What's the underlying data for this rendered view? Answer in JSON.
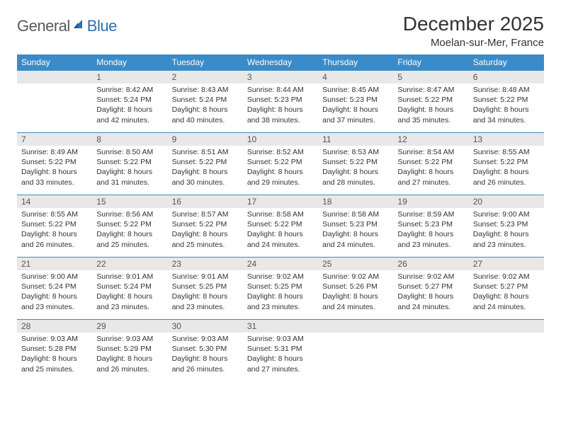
{
  "logo": {
    "part1": "General",
    "part2": "Blue"
  },
  "title": "December 2025",
  "location": "Moelan-sur-Mer, France",
  "header_bg": "#3b8bc8",
  "border_color": "#3b8bc8",
  "daynum_bg": "#e8e8e8",
  "weekdays": [
    "Sunday",
    "Monday",
    "Tuesday",
    "Wednesday",
    "Thursday",
    "Friday",
    "Saturday"
  ],
  "weeks": [
    [
      null,
      {
        "n": "1",
        "sr": "8:42 AM",
        "ss": "5:24 PM",
        "dl": "8 hours and 42 minutes."
      },
      {
        "n": "2",
        "sr": "8:43 AM",
        "ss": "5:24 PM",
        "dl": "8 hours and 40 minutes."
      },
      {
        "n": "3",
        "sr": "8:44 AM",
        "ss": "5:23 PM",
        "dl": "8 hours and 38 minutes."
      },
      {
        "n": "4",
        "sr": "8:45 AM",
        "ss": "5:23 PM",
        "dl": "8 hours and 37 minutes."
      },
      {
        "n": "5",
        "sr": "8:47 AM",
        "ss": "5:22 PM",
        "dl": "8 hours and 35 minutes."
      },
      {
        "n": "6",
        "sr": "8:48 AM",
        "ss": "5:22 PM",
        "dl": "8 hours and 34 minutes."
      }
    ],
    [
      {
        "n": "7",
        "sr": "8:49 AM",
        "ss": "5:22 PM",
        "dl": "8 hours and 33 minutes."
      },
      {
        "n": "8",
        "sr": "8:50 AM",
        "ss": "5:22 PM",
        "dl": "8 hours and 31 minutes."
      },
      {
        "n": "9",
        "sr": "8:51 AM",
        "ss": "5:22 PM",
        "dl": "8 hours and 30 minutes."
      },
      {
        "n": "10",
        "sr": "8:52 AM",
        "ss": "5:22 PM",
        "dl": "8 hours and 29 minutes."
      },
      {
        "n": "11",
        "sr": "8:53 AM",
        "ss": "5:22 PM",
        "dl": "8 hours and 28 minutes."
      },
      {
        "n": "12",
        "sr": "8:54 AM",
        "ss": "5:22 PM",
        "dl": "8 hours and 27 minutes."
      },
      {
        "n": "13",
        "sr": "8:55 AM",
        "ss": "5:22 PM",
        "dl": "8 hours and 26 minutes."
      }
    ],
    [
      {
        "n": "14",
        "sr": "8:55 AM",
        "ss": "5:22 PM",
        "dl": "8 hours and 26 minutes."
      },
      {
        "n": "15",
        "sr": "8:56 AM",
        "ss": "5:22 PM",
        "dl": "8 hours and 25 minutes."
      },
      {
        "n": "16",
        "sr": "8:57 AM",
        "ss": "5:22 PM",
        "dl": "8 hours and 25 minutes."
      },
      {
        "n": "17",
        "sr": "8:58 AM",
        "ss": "5:22 PM",
        "dl": "8 hours and 24 minutes."
      },
      {
        "n": "18",
        "sr": "8:58 AM",
        "ss": "5:23 PM",
        "dl": "8 hours and 24 minutes."
      },
      {
        "n": "19",
        "sr": "8:59 AM",
        "ss": "5:23 PM",
        "dl": "8 hours and 23 minutes."
      },
      {
        "n": "20",
        "sr": "9:00 AM",
        "ss": "5:23 PM",
        "dl": "8 hours and 23 minutes."
      }
    ],
    [
      {
        "n": "21",
        "sr": "9:00 AM",
        "ss": "5:24 PM",
        "dl": "8 hours and 23 minutes."
      },
      {
        "n": "22",
        "sr": "9:01 AM",
        "ss": "5:24 PM",
        "dl": "8 hours and 23 minutes."
      },
      {
        "n": "23",
        "sr": "9:01 AM",
        "ss": "5:25 PM",
        "dl": "8 hours and 23 minutes."
      },
      {
        "n": "24",
        "sr": "9:02 AM",
        "ss": "5:25 PM",
        "dl": "8 hours and 23 minutes."
      },
      {
        "n": "25",
        "sr": "9:02 AM",
        "ss": "5:26 PM",
        "dl": "8 hours and 24 minutes."
      },
      {
        "n": "26",
        "sr": "9:02 AM",
        "ss": "5:27 PM",
        "dl": "8 hours and 24 minutes."
      },
      {
        "n": "27",
        "sr": "9:02 AM",
        "ss": "5:27 PM",
        "dl": "8 hours and 24 minutes."
      }
    ],
    [
      {
        "n": "28",
        "sr": "9:03 AM",
        "ss": "5:28 PM",
        "dl": "8 hours and 25 minutes."
      },
      {
        "n": "29",
        "sr": "9:03 AM",
        "ss": "5:29 PM",
        "dl": "8 hours and 26 minutes."
      },
      {
        "n": "30",
        "sr": "9:03 AM",
        "ss": "5:30 PM",
        "dl": "8 hours and 26 minutes."
      },
      {
        "n": "31",
        "sr": "9:03 AM",
        "ss": "5:31 PM",
        "dl": "8 hours and 27 minutes."
      },
      null,
      null,
      null
    ]
  ],
  "labels": {
    "sunrise": "Sunrise:",
    "sunset": "Sunset:",
    "daylight": "Daylight:"
  }
}
